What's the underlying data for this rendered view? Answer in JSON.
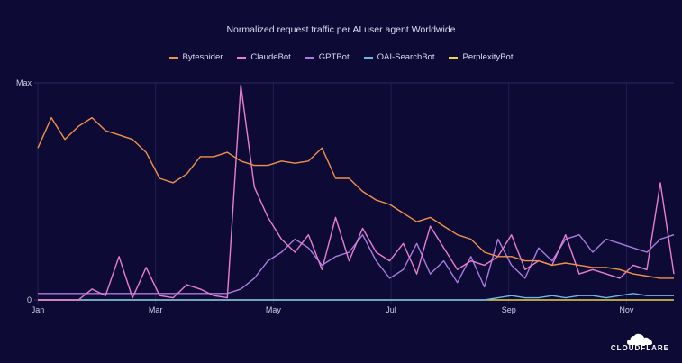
{
  "chart_data": {
    "type": "line",
    "title": "Normalized request traffic per AI user agent Worldwide",
    "xlabel": "",
    "ylabel": "",
    "y_tick_labels": [
      "0",
      "Max"
    ],
    "ylim": [
      0,
      1
    ],
    "x_tick_labels": [
      "Jan",
      "Mar",
      "May",
      "Jul",
      "Sep",
      "Nov"
    ],
    "grid": true,
    "legend_position": "top-center",
    "x": [
      "Jan 1",
      "Jan 8",
      "Jan 15",
      "Jan 22",
      "Jan 29",
      "Feb 5",
      "Feb 12",
      "Feb 19",
      "Feb 26",
      "Mar 5",
      "Mar 12",
      "Mar 19",
      "Mar 26",
      "Apr 2",
      "Apr 9",
      "Apr 16",
      "Apr 23",
      "Apr 30",
      "May 7",
      "May 14",
      "May 21",
      "May 28",
      "Jun 4",
      "Jun 11",
      "Jun 18",
      "Jun 25",
      "Jul 2",
      "Jul 9",
      "Jul 16",
      "Jul 23",
      "Jul 30",
      "Aug 6",
      "Aug 13",
      "Aug 20",
      "Aug 27",
      "Sep 3",
      "Sep 10",
      "Sep 17",
      "Sep 24",
      "Oct 1",
      "Oct 8",
      "Oct 15",
      "Oct 22",
      "Oct 29",
      "Nov 5",
      "Nov 12",
      "Nov 19",
      "Nov 26"
    ],
    "series": [
      {
        "name": "Bytespider",
        "color": "#f0914a",
        "values": [
          0.7,
          0.84,
          0.74,
          0.8,
          0.84,
          0.78,
          0.76,
          0.74,
          0.68,
          0.56,
          0.54,
          0.58,
          0.66,
          0.66,
          0.68,
          0.64,
          0.62,
          0.62,
          0.64,
          0.63,
          0.64,
          0.7,
          0.56,
          0.56,
          0.5,
          0.46,
          0.44,
          0.4,
          0.36,
          0.38,
          0.34,
          0.3,
          0.28,
          0.22,
          0.2,
          0.2,
          0.18,
          0.18,
          0.16,
          0.17,
          0.16,
          0.15,
          0.15,
          0.14,
          0.12,
          0.11,
          0.1,
          0.1
        ]
      },
      {
        "name": "ClaudeBot",
        "color": "#e87fce",
        "values": [
          0.0,
          0.0,
          0.0,
          0.0,
          0.05,
          0.02,
          0.2,
          0.01,
          0.15,
          0.02,
          0.01,
          0.07,
          0.05,
          0.02,
          0.01,
          0.99,
          0.52,
          0.38,
          0.28,
          0.22,
          0.3,
          0.14,
          0.38,
          0.18,
          0.33,
          0.22,
          0.18,
          0.26,
          0.12,
          0.34,
          0.24,
          0.14,
          0.18,
          0.16,
          0.2,
          0.3,
          0.14,
          0.18,
          0.16,
          0.3,
          0.12,
          0.14,
          0.12,
          0.1,
          0.16,
          0.14,
          0.54,
          0.12
        ]
      },
      {
        "name": "GPTBot",
        "color": "#a97be0",
        "values": [
          0.03,
          0.03,
          0.03,
          0.03,
          0.03,
          0.03,
          0.03,
          0.03,
          0.03,
          0.03,
          0.03,
          0.03,
          0.03,
          0.03,
          0.03,
          0.05,
          0.1,
          0.18,
          0.22,
          0.28,
          0.24,
          0.16,
          0.2,
          0.22,
          0.3,
          0.18,
          0.1,
          0.14,
          0.26,
          0.12,
          0.18,
          0.08,
          0.2,
          0.06,
          0.28,
          0.16,
          0.1,
          0.24,
          0.18,
          0.28,
          0.3,
          0.22,
          0.28,
          0.26,
          0.24,
          0.22,
          0.28,
          0.3
        ]
      },
      {
        "name": "OAI-SearchBot",
        "color": "#6fb5e8",
        "values": [
          0.0,
          0.0,
          0.0,
          0.0,
          0.0,
          0.0,
          0.0,
          0.0,
          0.0,
          0.0,
          0.0,
          0.0,
          0.0,
          0.0,
          0.0,
          0.0,
          0.0,
          0.0,
          0.0,
          0.0,
          0.0,
          0.0,
          0.0,
          0.0,
          0.0,
          0.0,
          0.0,
          0.0,
          0.0,
          0.0,
          0.0,
          0.0,
          0.0,
          0.0,
          0.01,
          0.02,
          0.01,
          0.01,
          0.02,
          0.01,
          0.02,
          0.02,
          0.01,
          0.02,
          0.03,
          0.02,
          0.02,
          0.02
        ]
      },
      {
        "name": "PerplexityBot",
        "color": "#e8d44a",
        "values": [
          0.0,
          0.0,
          0.0,
          0.0,
          0.0,
          0.0,
          0.0,
          0.0,
          0.0,
          0.0,
          0.0,
          0.0,
          0.0,
          0.0,
          0.0,
          0.0,
          0.0,
          0.0,
          0.0,
          0.0,
          0.0,
          0.0,
          0.0,
          0.0,
          0.0,
          0.0,
          0.0,
          0.0,
          0.0,
          0.0,
          0.0,
          0.0,
          0.0,
          0.0,
          0.0,
          0.0,
          0.0,
          0.0,
          0.0,
          0.0,
          0.0,
          0.0,
          0.0,
          0.0,
          0.0,
          0.0,
          0.0,
          0.0
        ]
      }
    ]
  },
  "branding": {
    "logo_text": "CLOUDFLARE"
  }
}
